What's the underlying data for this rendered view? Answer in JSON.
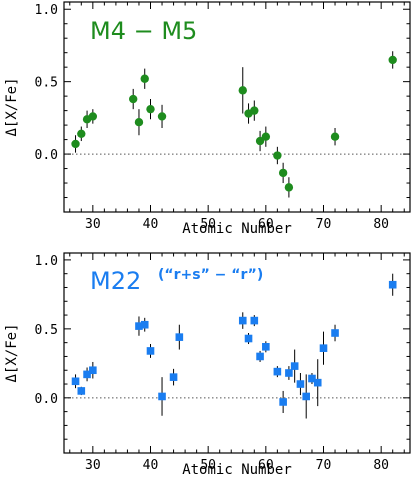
{
  "chart_data": [
    {
      "type": "scatter",
      "title": "M4 − M5",
      "subtitle": "",
      "xlabel": "Atomic Number",
      "ylabel": "Δ[X/Fe]",
      "xlim": [
        25,
        85
      ],
      "ylim": [
        -0.4,
        1.05
      ],
      "xticks": [
        30,
        40,
        50,
        60,
        70,
        80
      ],
      "yticks": [
        0.0,
        0.5,
        1.0
      ],
      "ytick_labels": [
        "0.0",
        "0.5",
        "1.0"
      ],
      "zero_line": true,
      "marker": "circle",
      "color": "#1e8c1e",
      "points": [
        {
          "x": 27,
          "y": 0.07,
          "err": 0.06
        },
        {
          "x": 28,
          "y": 0.14,
          "err": 0.05
        },
        {
          "x": 29,
          "y": 0.24,
          "err": 0.06
        },
        {
          "x": 30,
          "y": 0.26,
          "err": 0.05
        },
        {
          "x": 37,
          "y": 0.38,
          "err": 0.07
        },
        {
          "x": 38,
          "y": 0.22,
          "err": 0.09
        },
        {
          "x": 39,
          "y": 0.52,
          "err": 0.07
        },
        {
          "x": 40,
          "y": 0.31,
          "err": 0.07
        },
        {
          "x": 42,
          "y": 0.26,
          "err": 0.08
        },
        {
          "x": 56,
          "y": 0.44,
          "err": 0.16
        },
        {
          "x": 57,
          "y": 0.28,
          "err": 0.07
        },
        {
          "x": 58,
          "y": 0.3,
          "err": 0.07
        },
        {
          "x": 59,
          "y": 0.09,
          "err": 0.07
        },
        {
          "x": 60,
          "y": 0.12,
          "err": 0.07
        },
        {
          "x": 62,
          "y": -0.01,
          "err": 0.06
        },
        {
          "x": 63,
          "y": -0.13,
          "err": 0.07
        },
        {
          "x": 64,
          "y": -0.23,
          "err": 0.07
        },
        {
          "x": 72,
          "y": 0.12,
          "err": 0.06
        },
        {
          "x": 82,
          "y": 0.65,
          "err": 0.06
        }
      ]
    },
    {
      "type": "scatter",
      "title": "M22",
      "subtitle": "(“r+s” − “r”)",
      "xlabel": "Atomic Number",
      "ylabel": "Δ[X/Fe]",
      "xlim": [
        25,
        85
      ],
      "ylim": [
        -0.4,
        1.05
      ],
      "xticks": [
        30,
        40,
        50,
        60,
        70,
        80
      ],
      "yticks": [
        0.0,
        0.5,
        1.0
      ],
      "ytick_labels": [
        "0.0",
        "0.5",
        "1.0"
      ],
      "zero_line": true,
      "marker": "square",
      "color": "#1a7df0",
      "points": [
        {
          "x": 27,
          "y": 0.12,
          "err": 0.05
        },
        {
          "x": 28,
          "y": 0.05,
          "err": 0.03
        },
        {
          "x": 29,
          "y": 0.17,
          "err": 0.05
        },
        {
          "x": 30,
          "y": 0.2,
          "err": 0.06
        },
        {
          "x": 38,
          "y": 0.52,
          "err": 0.07
        },
        {
          "x": 39,
          "y": 0.53,
          "err": 0.05
        },
        {
          "x": 40,
          "y": 0.34,
          "err": 0.05
        },
        {
          "x": 42,
          "y": 0.01,
          "err": 0.14
        },
        {
          "x": 44,
          "y": 0.15,
          "err": 0.06
        },
        {
          "x": 45,
          "y": 0.44,
          "err": 0.09
        },
        {
          "x": 56,
          "y": 0.56,
          "err": 0.06
        },
        {
          "x": 57,
          "y": 0.43,
          "err": 0.04
        },
        {
          "x": 58,
          "y": 0.56,
          "err": 0.04
        },
        {
          "x": 59,
          "y": 0.3,
          "err": 0.04
        },
        {
          "x": 60,
          "y": 0.37,
          "err": 0.04
        },
        {
          "x": 62,
          "y": 0.19,
          "err": 0.04
        },
        {
          "x": 63,
          "y": -0.03,
          "err": 0.08
        },
        {
          "x": 64,
          "y": 0.18,
          "err": 0.05
        },
        {
          "x": 65,
          "y": 0.23,
          "err": 0.12
        },
        {
          "x": 66,
          "y": 0.1,
          "err": 0.08
        },
        {
          "x": 67,
          "y": 0.01,
          "err": 0.16
        },
        {
          "x": 68,
          "y": 0.14,
          "err": 0.04
        },
        {
          "x": 69,
          "y": 0.11,
          "err": 0.17
        },
        {
          "x": 70,
          "y": 0.36,
          "err": 0.12
        },
        {
          "x": 72,
          "y": 0.47,
          "err": 0.06
        },
        {
          "x": 82,
          "y": 0.82,
          "err": 0.08
        }
      ]
    }
  ]
}
